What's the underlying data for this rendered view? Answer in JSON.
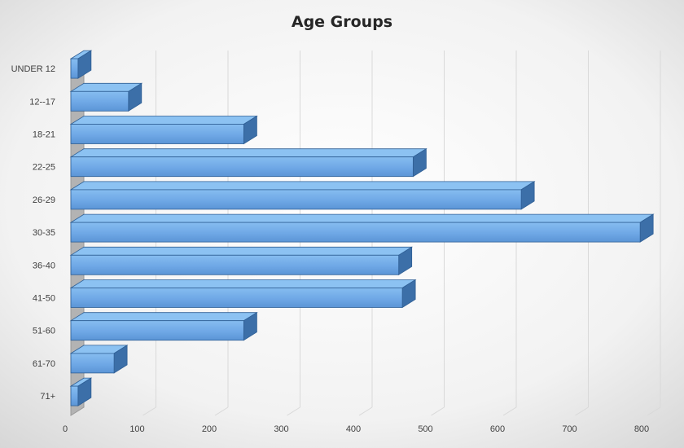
{
  "chart_data": {
    "type": "bar",
    "orientation": "horizontal",
    "title": "Age Groups",
    "categories": [
      "UNDER 12",
      "12--17",
      "18-21",
      "22-25",
      "26-29",
      "30-35",
      "36-40",
      "41-50",
      "51-60",
      "61-70",
      "71+"
    ],
    "values": [
      10,
      80,
      240,
      475,
      625,
      790,
      455,
      460,
      240,
      60,
      10
    ],
    "xlim": [
      0,
      800
    ],
    "xticks": [
      "0",
      "100",
      "200",
      "300",
      "400",
      "500",
      "600",
      "700",
      "800"
    ],
    "grid": true,
    "legend": "none",
    "colors": {
      "bar_front": "#6fa8e6",
      "bar_top": "#8cc2f2",
      "bar_side": "#3c6fa8",
      "bar_edge": "#2f5f95",
      "wall": "#b3b3b3",
      "background": "#f0f0f0"
    }
  }
}
